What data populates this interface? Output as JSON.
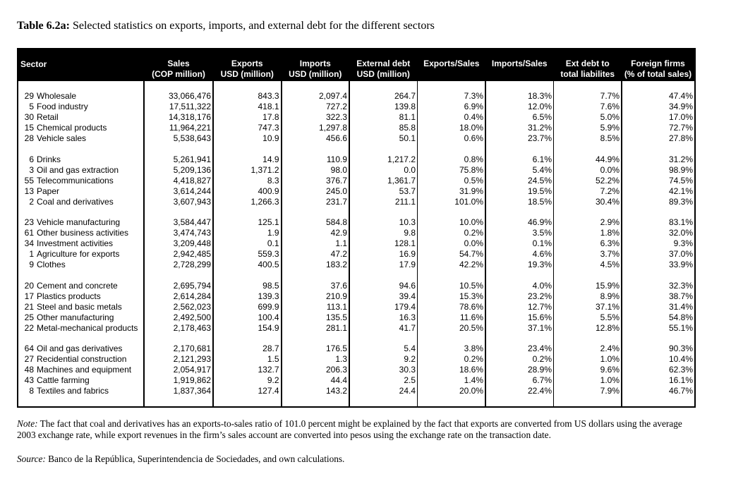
{
  "title": {
    "label": "Table 6.2a:",
    "text": " Selected statistics on exports, imports, and external debt for the different sectors"
  },
  "columns": [
    [
      "Sector",
      ""
    ],
    [
      "Sales",
      "(COP million)"
    ],
    [
      "Exports",
      "USD (million)"
    ],
    [
      "Imports",
      "USD (million)"
    ],
    [
      "External debt",
      "USD (million)"
    ],
    [
      "Exports/Sales",
      ""
    ],
    [
      "Imports/Sales",
      ""
    ],
    [
      "Ext debt to",
      "total liabilites"
    ],
    [
      "Foreign firms",
      "(% of total sales)"
    ]
  ],
  "groups": [
    [
      [
        "29",
        "Wholesale",
        "33,066,476",
        "843.3",
        "2,097.4",
        "264.7",
        "7.3%",
        "18.3%",
        "7.7%",
        "47.4%"
      ],
      [
        "5",
        "Food industry",
        "17,511,322",
        "418.1",
        "727.2",
        "139.8",
        "6.9%",
        "12.0%",
        "7.6%",
        "34.9%"
      ],
      [
        "30",
        "Retail",
        "14,318,176",
        "17.8",
        "322.3",
        "81.1",
        "0.4%",
        "6.5%",
        "5.0%",
        "17.0%"
      ],
      [
        "15",
        "Chemical products",
        "11,964,221",
        "747.3",
        "1,297.8",
        "85.8",
        "18.0%",
        "31.2%",
        "5.9%",
        "72.7%"
      ],
      [
        "28",
        "Vehicle sales",
        "5,538,643",
        "10.9",
        "456.6",
        "50.1",
        "0.6%",
        "23.7%",
        "8.5%",
        "27.8%"
      ]
    ],
    [
      [
        "6",
        "Drinks",
        "5,261,941",
        "14.9",
        "110.9",
        "1,217.2",
        "0.8%",
        "6.1%",
        "44.9%",
        "31.2%"
      ],
      [
        "3",
        "Oil and gas extraction",
        "5,209,136",
        "1,371.2",
        "98.0",
        "0.0",
        "75.8%",
        "5.4%",
        "0.0%",
        "98.9%"
      ],
      [
        "55",
        "Telecommunications",
        "4,418,827",
        "8.3",
        "376.7",
        "1,361.7",
        "0.5%",
        "24.5%",
        "52.2%",
        "74.5%"
      ],
      [
        "13",
        "Paper",
        "3,614,244",
        "400.9",
        "245.0",
        "53.7",
        "31.9%",
        "19.5%",
        "7.2%",
        "42.1%"
      ],
      [
        "2",
        "Coal and derivatives",
        "3,607,943",
        "1,266.3",
        "231.7",
        "211.1",
        "101.0%",
        "18.5%",
        "30.4%",
        "89.3%"
      ]
    ],
    [
      [
        "23",
        "Vehicle manufacturing",
        "3,584,447",
        "125.1",
        "584.8",
        "10.3",
        "10.0%",
        "46.9%",
        "2.9%",
        "83.1%"
      ],
      [
        "61",
        "Other business activities",
        "3,474,743",
        "1.9",
        "42.9",
        "9.8",
        "0.2%",
        "3.5%",
        "1.8%",
        "32.0%"
      ],
      [
        "34",
        "Investment activities",
        "3,209,448",
        "0.1",
        "1.1",
        "128.1",
        "0.0%",
        "0.1%",
        "6.3%",
        "9.3%"
      ],
      [
        "1",
        "Agriculture for exports",
        "2,942,485",
        "559.3",
        "47.2",
        "16.9",
        "54.7%",
        "4.6%",
        "3.7%",
        "37.0%"
      ],
      [
        "9",
        "Clothes",
        "2,728,299",
        "400.5",
        "183.2",
        "17.9",
        "42.2%",
        "19.3%",
        "4.5%",
        "33.9%"
      ]
    ],
    [
      [
        "20",
        "Cement and concrete",
        "2,695,794",
        "98.5",
        "37.6",
        "94.6",
        "10.5%",
        "4.0%",
        "15.9%",
        "32.3%"
      ],
      [
        "17",
        "Plastics products",
        "2,614,284",
        "139.3",
        "210.9",
        "39.4",
        "15.3%",
        "23.2%",
        "8.9%",
        "38.7%"
      ],
      [
        "21",
        "Steel and basic metals",
        "2,562,023",
        "699.9",
        "113.1",
        "179.4",
        "78.6%",
        "12.7%",
        "37.1%",
        "31.4%"
      ],
      [
        "25",
        "Other manufacturing",
        "2,492,500",
        "100.4",
        "135.5",
        "16.3",
        "11.6%",
        "15.6%",
        "5.5%",
        "54.8%"
      ],
      [
        "22",
        "Metal-mechanical products",
        "2,178,463",
        "154.9",
        "281.1",
        "41.7",
        "20.5%",
        "37.1%",
        "12.8%",
        "55.1%"
      ]
    ],
    [
      [
        "64",
        "Oil and gas derivatives",
        "2,170,681",
        "28.7",
        "176.5",
        "5.4",
        "3.8%",
        "23.4%",
        "2.4%",
        "90.3%"
      ],
      [
        "27",
        "Recidential construction",
        "2,121,293",
        "1.5",
        "1.3",
        "9.2",
        "0.2%",
        "0.2%",
        "1.0%",
        "10.4%"
      ],
      [
        "48",
        "Machines and equipment",
        "2,054,917",
        "132.7",
        "206.3",
        "30.3",
        "18.6%",
        "28.9%",
        "9.6%",
        "62.3%"
      ],
      [
        "43",
        "Cattle farming",
        "1,919,862",
        "9.2",
        "44.4",
        "2.5",
        "1.4%",
        "6.7%",
        "1.0%",
        "16.1%"
      ],
      [
        "8",
        "Textiles and fabrics",
        "1,837,364",
        "127.4",
        "143.2",
        "24.4",
        "20.0%",
        "22.4%",
        "7.9%",
        "46.7%"
      ]
    ]
  ],
  "note": {
    "label": "Note:",
    "text": " The fact that coal and derivatives has an exports-to-sales ratio of 101.0 percent might be explained by the fact that exports are converted from US dollars using the average 2003 exchange rate, while export revenues in the firm’s sales account are converted into pesos using the exchange rate on the transaction date."
  },
  "source": {
    "label": "Source:",
    "text": " Banco de la República, Superintendencia de Sociedades, and own calculations."
  }
}
